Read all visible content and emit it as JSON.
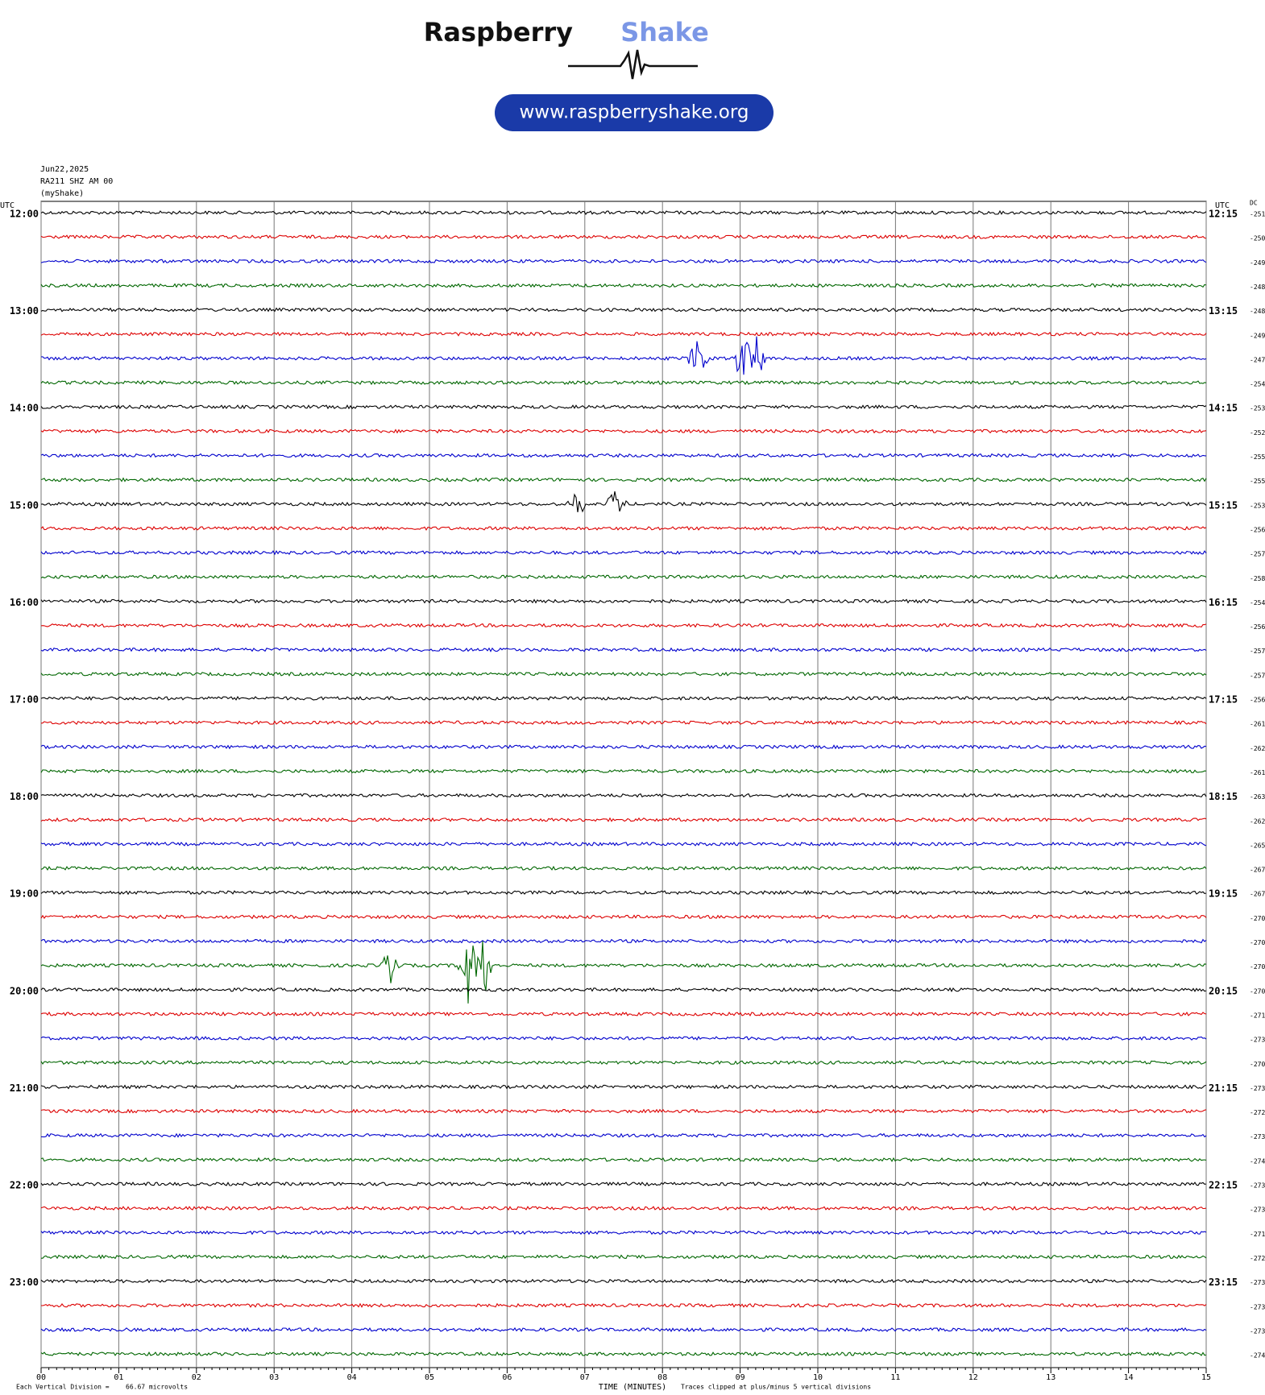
{
  "logo": {
    "word1": "Raspberry",
    "word2": "Shake",
    "url": "www.raspberryshake.org"
  },
  "chart_data": {
    "type": "helicorder",
    "date": "Jun22,2025",
    "station": "RA211 SHZ AM 00",
    "network": "(myShake)",
    "left_axis_label": "UTC",
    "right_axis_label": "UTC",
    "dc_label": "DC",
    "left_times": [
      "12:00",
      "13:00",
      "14:00",
      "15:00",
      "16:00",
      "17:00",
      "18:00",
      "19:00",
      "20:00",
      "21:00",
      "22:00",
      "23:00"
    ],
    "right_times": [
      "12:15",
      "13:15",
      "14:15",
      "15:15",
      "16:15",
      "17:15",
      "18:15",
      "19:15",
      "20:15",
      "21:15",
      "22:15",
      "23:15"
    ],
    "dc_values": [
      -251,
      -250,
      -249,
      -248,
      -248,
      -249,
      -247,
      -254,
      -253,
      -252,
      -255,
      -255,
      -253,
      -256,
      -257,
      -258,
      -254,
      -256,
      -257,
      -257,
      -256,
      -261,
      -262,
      -261,
      -263,
      -262,
      -265,
      -267,
      -267,
      -270,
      -270,
      -270,
      -270,
      -271,
      -273,
      -270,
      -273,
      -272,
      -273,
      -274,
      -273,
      -273,
      -271,
      -272,
      -273,
      -273,
      -273,
      -274
    ],
    "trace_colors": [
      "#000000",
      "#dd0000",
      "#0000cc",
      "#006600"
    ],
    "xlim": [
      0,
      15
    ],
    "xticks": [
      {
        "value": 0,
        "label": "00"
      },
      {
        "value": 1,
        "label": "01"
      },
      {
        "value": 2,
        "label": "02"
      },
      {
        "value": 3,
        "label": "03"
      },
      {
        "value": 4,
        "label": "04"
      },
      {
        "value": 5,
        "label": "05"
      },
      {
        "value": 6,
        "label": "06"
      },
      {
        "value": 7,
        "label": "07"
      },
      {
        "value": 8,
        "label": "08"
      },
      {
        "value": 9,
        "label": "09"
      },
      {
        "value": 10,
        "label": "10"
      },
      {
        "value": 11,
        "label": "11"
      },
      {
        "value": 12,
        "label": "12"
      },
      {
        "value": 13,
        "label": "13"
      },
      {
        "value": 14,
        "label": "14"
      },
      {
        "value": 15,
        "label": "15"
      }
    ],
    "xlabel": "TIME (MINUTES)",
    "division_label": "Each Vertical Division =",
    "division_value": "66.67 microvolts",
    "clip_note": "Traces clipped at plus/minus 5 vertical divisions",
    "grid": true
  }
}
